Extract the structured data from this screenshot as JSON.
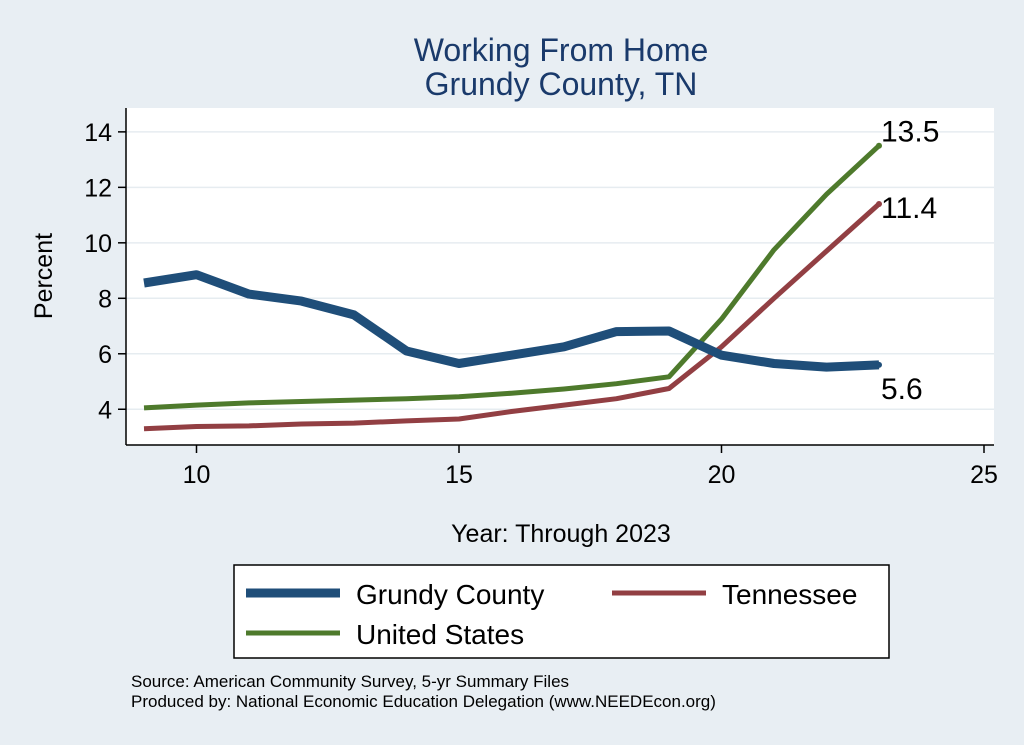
{
  "chart_data": {
    "type": "line",
    "title": [
      "Working From Home",
      "Grundy County, TN"
    ],
    "xlabel": "Year: Through 2023",
    "ylabel": "Percent",
    "xlim": [
      9,
      25
    ],
    "ylim": [
      3.0,
      14.5
    ],
    "xticks": [
      10,
      15,
      20,
      25
    ],
    "yticks": [
      4,
      6,
      8,
      10,
      12,
      14
    ],
    "grid": true,
    "x": [
      9,
      10,
      11,
      12,
      13,
      14,
      15,
      16,
      17,
      18,
      19,
      20,
      21,
      22,
      23
    ],
    "series": [
      {
        "name": "Grundy County",
        "color": "#1f4e79",
        "values": [
          8.55,
          8.85,
          8.15,
          7.9,
          7.4,
          6.1,
          5.65,
          5.95,
          6.25,
          6.8,
          6.82,
          5.95,
          5.65,
          5.52,
          5.6
        ],
        "end_label": "5.6"
      },
      {
        "name": "Tennessee",
        "color": "#923f43",
        "values": [
          3.3,
          3.38,
          3.4,
          3.47,
          3.5,
          3.58,
          3.65,
          3.92,
          4.15,
          4.38,
          4.75,
          6.25,
          8.0,
          9.7,
          11.4
        ],
        "end_label": "11.4"
      },
      {
        "name": "United States",
        "color": "#4e7a2c",
        "values": [
          4.05,
          4.15,
          4.23,
          4.28,
          4.33,
          4.38,
          4.45,
          4.58,
          4.73,
          4.92,
          5.17,
          7.25,
          9.75,
          11.75,
          13.5
        ],
        "end_label": "13.5"
      }
    ],
    "legend_position": "bottom"
  },
  "footer": {
    "source": "Source: American Community Survey, 5-yr Summary Files",
    "produced_by": "Produced by: National Economic Education Delegation (www.NEEDEcon.org)"
  }
}
